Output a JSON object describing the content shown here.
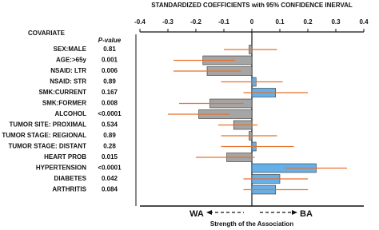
{
  "chart_data": {
    "type": "coefficient",
    "title": "STANDARDIZED COEFFICIENTS with 95% CONFIDENCE INERVAL",
    "row_header": "COVARIATE",
    "pvalue_header": "P-value",
    "categories": [
      "SEX:MALE",
      "AGE:>65y",
      "NSAID: LTR",
      "NSAID: STR",
      "SMK:CURRENT",
      "SMK:FORMER",
      "ALCOHOL",
      "TUMOR SITE: PROXIMAL",
      "TUMOR STAGE: REGIONAL",
      "TUMOR STAGE: DISTANT",
      "HEART PROB",
      "HYPERTENSION",
      "DIABETES",
      "ARTHRITIS"
    ],
    "pvalues": [
      "0.81",
      "0.001",
      "0.006",
      "0.89",
      "0.167",
      "0.008",
      "<0.0001",
      "0.534",
      "0.89",
      "0.28",
      "0.015",
      "<0.0001",
      "0.042",
      "0.084"
    ],
    "values": [
      -0.01,
      -0.175,
      -0.16,
      0.015,
      0.085,
      -0.15,
      -0.19,
      -0.065,
      -0.01,
      0.015,
      -0.09,
      0.23,
      0.1,
      0.085
    ],
    "ci": [
      [
        -0.1,
        0.09
      ],
      [
        -0.28,
        -0.06
      ],
      [
        -0.28,
        -0.04
      ],
      [
        -0.11,
        0.11
      ],
      [
        -0.03,
        0.2
      ],
      [
        -0.26,
        -0.03
      ],
      [
        -0.3,
        -0.08
      ],
      [
        -0.12,
        0.02
      ],
      [
        -0.11,
        0.09
      ],
      [
        -0.11,
        0.15
      ],
      [
        -0.2,
        0.01
      ],
      [
        0.12,
        0.34
      ],
      [
        -0.03,
        0.2
      ],
      [
        -0.03,
        0.2
      ]
    ],
    "colors": {
      "negative": "#a5a5a5",
      "positive": "#66b0ea",
      "error": "#e8702a"
    },
    "xlim": [
      -0.4,
      0.4
    ],
    "xticks": [
      -0.4,
      -0.3,
      -0.2,
      -0.1,
      0,
      0.1,
      0.2,
      0.3,
      0.4
    ],
    "left_label": "WA",
    "right_label": "BA",
    "xlabel": "Strength of the Association"
  }
}
